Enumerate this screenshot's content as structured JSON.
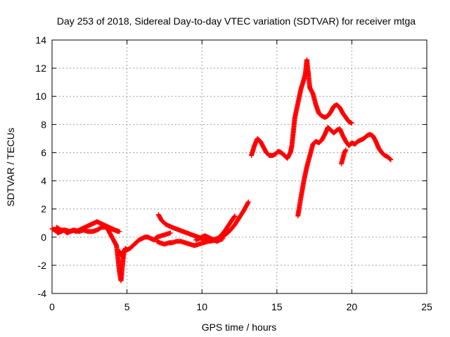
{
  "chart_data": {
    "type": "scatter",
    "title": "Day 253 of 2018, Sidereal Day-to-day VTEC variation (SDTVAR) for receiver mtga",
    "xlabel": "GPS time / hours",
    "ylabel": "SDTVAR / TECUs",
    "xlim": [
      0,
      25
    ],
    "ylim": [
      -4,
      14
    ],
    "xticks": [
      0,
      5,
      10,
      15,
      20,
      25
    ],
    "yticks": [
      -4,
      -2,
      0,
      2,
      4,
      6,
      8,
      10,
      12,
      14
    ],
    "grid": true,
    "marker": "plus",
    "color": "#ff0000",
    "series": [
      {
        "x": [
          0.0,
          0.2,
          0.4,
          0.6,
          0.8,
          1.0,
          1.2,
          1.4,
          1.6,
          1.8,
          2.0,
          2.2,
          2.4,
          2.6,
          2.8,
          3.0,
          3.2,
          3.4,
          3.6,
          3.8,
          4.0,
          4.2,
          4.4
        ],
        "y": [
          0.6,
          0.5,
          0.3,
          0.4,
          0.5,
          0.3,
          0.4,
          0.5,
          0.4,
          0.5,
          0.6,
          0.7,
          0.8,
          0.9,
          1.0,
          1.1,
          1.0,
          0.9,
          0.8,
          0.7,
          0.6,
          0.5,
          0.4
        ]
      },
      {
        "x": [
          0.3,
          0.6,
          0.9,
          1.2,
          1.5,
          1.8,
          2.1,
          2.4,
          2.7,
          3.0,
          3.3,
          3.6,
          3.9,
          4.2,
          4.5
        ],
        "y": [
          0.7,
          0.5,
          0.5,
          0.4,
          0.5,
          0.4,
          0.5,
          0.4,
          0.4,
          0.5,
          0.7,
          0.7,
          0.6,
          0.5,
          0.4
        ]
      },
      {
        "x": [
          3.7,
          3.9,
          4.1,
          4.2,
          4.3,
          4.4,
          4.5,
          4.6,
          4.7,
          4.8,
          5.0,
          5.2,
          5.4,
          5.6,
          5.8,
          6.0,
          6.2,
          6.4,
          6.6,
          6.8,
          7.0,
          7.3,
          7.6,
          7.9
        ],
        "y": [
          0.6,
          0.2,
          -0.2,
          -0.4,
          -0.6,
          -1.5,
          -2.5,
          -3.1,
          -2.0,
          -1.0,
          -0.9,
          -0.8,
          -0.6,
          -0.4,
          -0.2,
          -0.1,
          0.0,
          0.0,
          -0.1,
          -0.2,
          0.0,
          0.1,
          0.2,
          0.3
        ]
      },
      {
        "x": [
          4.5,
          4.6,
          4.7,
          4.8,
          4.9,
          5.0
        ],
        "y": [
          -1.0,
          -1.2,
          -1.4,
          -1.0,
          -0.8,
          -0.9
        ]
      },
      {
        "x": [
          7.0,
          7.2,
          7.5,
          7.8,
          8.0,
          8.3,
          8.6,
          8.9,
          9.2,
          9.5,
          9.8,
          10.1,
          10.4,
          10.7,
          11.0,
          11.3,
          11.6,
          11.9,
          12.2,
          12.5,
          12.8,
          13.1
        ],
        "y": [
          -0.3,
          -0.4,
          -0.5,
          -0.4,
          -0.4,
          -0.3,
          -0.3,
          -0.4,
          -0.5,
          -0.6,
          -0.5,
          -0.4,
          -0.3,
          -0.2,
          -0.1,
          0.0,
          0.2,
          0.5,
          0.9,
          1.4,
          1.9,
          2.5
        ]
      },
      {
        "x": [
          7.1,
          7.3,
          7.6,
          8.0,
          8.5,
          9.0,
          9.5,
          10.0,
          10.5,
          11.0,
          11.5,
          12.0,
          12.2
        ],
        "y": [
          1.6,
          1.2,
          0.9,
          0.7,
          0.5,
          0.3,
          0.1,
          -0.1,
          -0.3,
          -0.2,
          0.4,
          1.2,
          1.5
        ]
      },
      {
        "x": [
          9.6,
          9.8,
          10.0,
          10.2,
          10.4,
          10.6,
          10.8,
          11.0,
          11.2,
          11.4
        ],
        "y": [
          -0.2,
          -0.1,
          0.0,
          0.1,
          0.0,
          -0.1,
          -0.2,
          -0.3,
          -0.2,
          -0.1
        ]
      },
      {
        "x": [
          13.3,
          13.5,
          13.7,
          13.9,
          14.1,
          14.3,
          14.5,
          14.7,
          14.9,
          15.1,
          15.3,
          15.5,
          15.7,
          15.9,
          16.0,
          16.1,
          16.2,
          16.4,
          16.6,
          16.8,
          16.9,
          17.0,
          17.2,
          17.4,
          17.6,
          17.8,
          18.0,
          18.2,
          18.4,
          18.6,
          18.8,
          19.0,
          19.2,
          19.4,
          19.6,
          19.8,
          20.0
        ],
        "y": [
          5.8,
          6.5,
          7.0,
          6.8,
          6.4,
          6.0,
          5.8,
          5.8,
          5.9,
          6.1,
          6.0,
          5.8,
          5.6,
          6.0,
          6.5,
          7.5,
          8.5,
          9.5,
          10.5,
          11.2,
          11.6,
          12.6,
          10.6,
          10.2,
          9.4,
          8.8,
          8.6,
          8.5,
          8.6,
          8.9,
          9.3,
          9.4,
          9.2,
          8.8,
          8.5,
          8.2,
          8.1
        ]
      },
      {
        "x": [
          16.4,
          16.6,
          16.8,
          17.0,
          17.2,
          17.4,
          17.6,
          17.8,
          18.0,
          18.2,
          18.4,
          18.6,
          18.8,
          19.0,
          19.2,
          19.4,
          19.6,
          19.8,
          20.0,
          20.2,
          20.4,
          20.6,
          20.8,
          21.0,
          21.2,
          21.4,
          21.6,
          21.8,
          22.0,
          22.2,
          22.4,
          22.6
        ],
        "y": [
          1.5,
          2.8,
          4.0,
          5.0,
          5.8,
          6.6,
          6.8,
          6.7,
          6.9,
          7.3,
          7.8,
          7.6,
          7.4,
          7.6,
          7.7,
          7.2,
          6.8,
          6.5,
          6.7,
          6.6,
          6.8,
          6.9,
          7.0,
          7.2,
          7.3,
          7.2,
          6.8,
          6.3,
          6.0,
          5.8,
          5.7,
          5.5
        ]
      },
      {
        "x": [
          19.3,
          19.4,
          19.5,
          19.6
        ],
        "y": [
          5.2,
          5.6,
          6.0,
          6.2
        ]
      }
    ]
  }
}
